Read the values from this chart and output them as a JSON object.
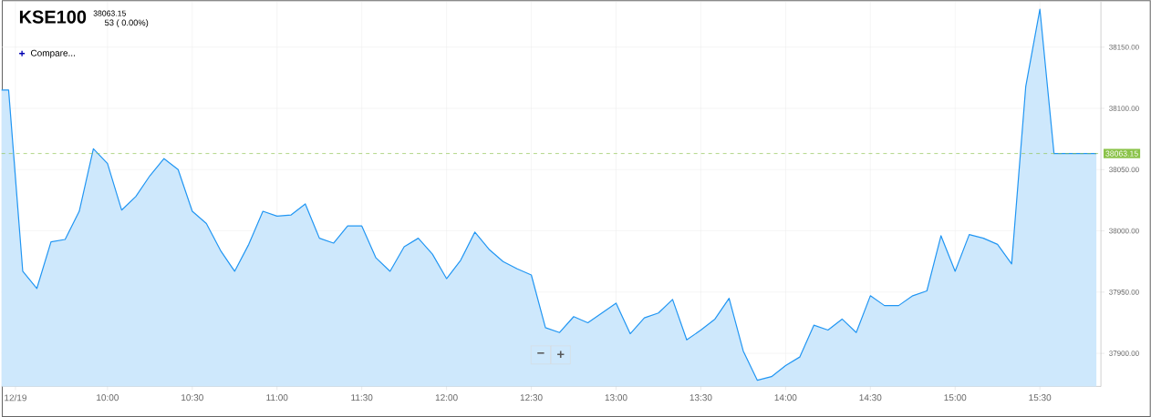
{
  "chart_data": {
    "type": "area",
    "title": "KSE100",
    "subtitle": "38063.15",
    "annotations": [
      "53 ( 0.00%)",
      "+",
      "Compare...",
      "−",
      "+"
    ],
    "color": "#2196f3",
    "x": [
      9.375,
      9.4167,
      9.5,
      9.5833,
      9.6667,
      9.75,
      9.8333,
      9.9167,
      10,
      10.0833,
      10.1667,
      10.25,
      10.3333,
      10.4167,
      10.5,
      10.5833,
      10.6667,
      10.75,
      10.8333,
      10.9167,
      11,
      11.0833,
      11.1667,
      11.25,
      11.3333,
      11.4167,
      11.5,
      11.5833,
      11.6667,
      11.75,
      11.8333,
      11.9167,
      12,
      12.0833,
      12.1667,
      12.25,
      12.3333,
      12.4167,
      12.5,
      12.5833,
      12.6667,
      12.75,
      12.8333,
      12.9167,
      13,
      13.0833,
      13.1667,
      13.25,
      13.3333,
      13.4167,
      13.5,
      13.5833,
      13.6667,
      13.75,
      13.8333,
      13.9167,
      14,
      14.0833,
      14.1667,
      14.25,
      14.3333,
      14.4167,
      14.5,
      14.5833,
      14.6667,
      14.75,
      14.8333,
      14.9167,
      15,
      15.0833,
      15.1667,
      15.25,
      15.3333,
      15.4167,
      15.5,
      15.5833,
      15.8333
    ],
    "values": [
      38115,
      38115,
      37967,
      37953,
      37991,
      37993,
      38016,
      38067,
      38055,
      38017,
      38028,
      38045,
      38059,
      38050,
      38016,
      38006,
      37984,
      37967,
      37989,
      38016,
      38012,
      38013,
      38022,
      37994,
      37990,
      38004,
      38004,
      37978,
      37967,
      37987,
      37994,
      37981,
      37961,
      37976,
      37999,
      37985,
      37975,
      37969,
      37964,
      37921,
      37917,
      37930,
      37925,
      37933,
      37941,
      37916,
      37929,
      37933,
      37944,
      37911,
      37919,
      37928,
      37945,
      37902,
      37878,
      37881,
      37890,
      37897,
      37923,
      37919,
      37928,
      37917,
      37947,
      37939,
      37939,
      37947,
      37951,
      37996,
      37967,
      37997,
      37994,
      37989,
      37973,
      38118,
      38181,
      38063.15,
      38063.15
    ],
    "xlim": [
      9.375,
      15.86
    ],
    "ylim": [
      37873,
      38187
    ],
    "xticks": [
      {
        "value": 9.457,
        "label": "12/19"
      },
      {
        "value": 10,
        "label": "10:00"
      },
      {
        "value": 10.5,
        "label": "10:30"
      },
      {
        "value": 11,
        "label": "11:00"
      },
      {
        "value": 11.5,
        "label": "11:30"
      },
      {
        "value": 12,
        "label": "12:00"
      },
      {
        "value": 12.5,
        "label": "12:30"
      },
      {
        "value": 13,
        "label": "13:00"
      },
      {
        "value": 13.5,
        "label": "13:30"
      },
      {
        "value": 14,
        "label": "14:00"
      },
      {
        "value": 14.5,
        "label": "14:30"
      },
      {
        "value": 15,
        "label": "15:00"
      },
      {
        "value": 15.5,
        "label": "15:30"
      }
    ],
    "yticks": [
      {
        "value": 37900,
        "label": "37900.00"
      },
      {
        "value": 37950,
        "label": "37950.00"
      },
      {
        "value": 38000,
        "label": "38000.00"
      },
      {
        "value": 38050,
        "label": "38050.00"
      },
      {
        "value": 38100,
        "label": "38100.00"
      },
      {
        "value": 38150,
        "label": "38150.00"
      }
    ],
    "ref_lines": [
      {
        "axis": "y",
        "value": 38063.15,
        "label": "38063.15",
        "color": "#8bc34a",
        "line_style": "dashed"
      }
    ],
    "grid": true
  }
}
